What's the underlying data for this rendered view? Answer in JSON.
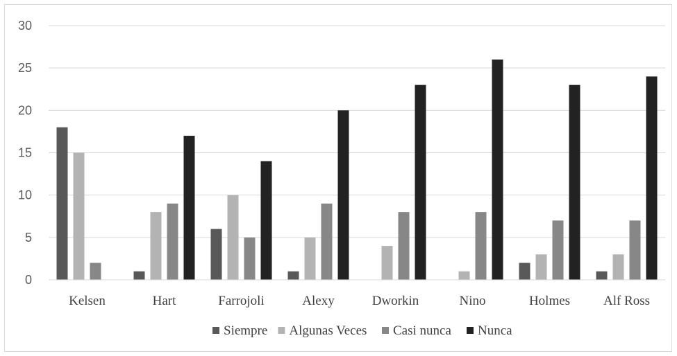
{
  "chart_data": {
    "type": "bar",
    "categories": [
      "Kelsen",
      "Hart",
      "Farrojoli",
      "Alexy",
      "Dworkin",
      "Nino",
      "Holmes",
      "Alf Ross"
    ],
    "series": [
      {
        "name": "Siempre",
        "color": "#595959",
        "values": [
          18,
          1,
          6,
          1,
          0,
          0,
          2,
          1
        ]
      },
      {
        "name": "Algunas Veces",
        "color": "#b3b3b3",
        "values": [
          15,
          8,
          10,
          5,
          4,
          1,
          3,
          3
        ]
      },
      {
        "name": "Casi nunca",
        "color": "#878787",
        "values": [
          2,
          9,
          5,
          9,
          8,
          8,
          7,
          7
        ]
      },
      {
        "name": "Nunca",
        "color": "#222222",
        "values": [
          0,
          17,
          14,
          20,
          23,
          26,
          23,
          24
        ]
      }
    ],
    "yticks": [
      "0",
      "5",
      "10",
      "15",
      "20",
      "25",
      "30"
    ],
    "ylim": [
      0,
      30
    ],
    "grid": true,
    "legend_position": "bottom",
    "title": "",
    "xlabel": "",
    "ylabel": ""
  }
}
